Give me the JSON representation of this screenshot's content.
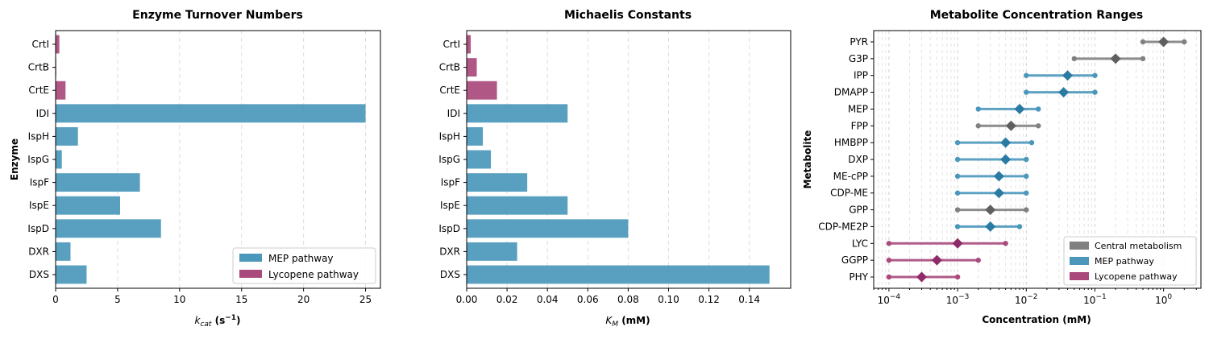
{
  "colors": {
    "mep": "#4a97bb",
    "lycopene": "#a9497c",
    "central": "#808080",
    "central_marker": "#5f5f5f",
    "mep_marker": "#2a7aa3",
    "lyc_marker": "#8e2b68"
  },
  "chart_data": [
    {
      "type": "bar",
      "orientation": "horizontal",
      "title": "Enzyme Turnover Numbers",
      "xlabel_main": "k",
      "xlabel_sub": "cat",
      "xlabel_unit": " (s",
      "xlabel_exp": "−1",
      "xlabel_close": ")",
      "ylabel": "Enzyme",
      "xlim": [
        0,
        26.2
      ],
      "xticks": [
        0,
        5,
        10,
        15,
        20,
        25
      ],
      "xtick_labels": [
        "0",
        "5",
        "10",
        "15",
        "20",
        "25"
      ],
      "grid": "x",
      "legend_position": "bottom-right",
      "categories": [
        "DXS",
        "DXR",
        "IspD",
        "IspE",
        "IspF",
        "IspG",
        "IspH",
        "IDI",
        "CrtE",
        "CrtB",
        "CrtI"
      ],
      "values": [
        2.5,
        1.2,
        8.5,
        5.2,
        6.8,
        0.5,
        1.8,
        25,
        0.8,
        0.05,
        0.3
      ],
      "groups": [
        "mep",
        "mep",
        "mep",
        "mep",
        "mep",
        "mep",
        "mep",
        "mep",
        "lycopene",
        "lycopene",
        "lycopene"
      ],
      "legend": [
        {
          "key": "mep",
          "label": "MEP pathway"
        },
        {
          "key": "lycopene",
          "label": "Lycopene pathway"
        }
      ]
    },
    {
      "type": "bar",
      "orientation": "horizontal",
      "title": "Michaelis Constants",
      "xlabel_main": "K",
      "xlabel_sub": "M",
      "xlabel_unit": " (mM)",
      "xlim": [
        0,
        0.1605
      ],
      "xticks": [
        0,
        0.02,
        0.04,
        0.06,
        0.08,
        0.1,
        0.12,
        0.14
      ],
      "xtick_labels": [
        "0.00",
        "0.02",
        "0.04",
        "0.06",
        "0.08",
        "0.10",
        "0.12",
        "0.14"
      ],
      "grid": "x",
      "categories": [
        "DXS",
        "DXR",
        "IspD",
        "IspE",
        "IspF",
        "IspG",
        "IspH",
        "IDI",
        "CrtE",
        "CrtB",
        "CrtI"
      ],
      "values": [
        0.15,
        0.025,
        0.08,
        0.05,
        0.03,
        0.012,
        0.008,
        0.05,
        0.015,
        0.005,
        0.002
      ],
      "groups": [
        "mep",
        "mep",
        "mep",
        "mep",
        "mep",
        "mep",
        "mep",
        "mep",
        "lycopene",
        "lycopene",
        "lycopene"
      ]
    },
    {
      "type": "range",
      "title": "Metabolite Concentration Ranges",
      "xlabel": "Concentration (mM)",
      "ylabel": "Metabolite",
      "xscale": "log",
      "xlim": [
        6e-05,
        3.5
      ],
      "xticks": [
        0.0001,
        0.001,
        0.01,
        0.1,
        1
      ],
      "xtick_base": "10",
      "xtick_exps": [
        "−4",
        "−3",
        "−2",
        "−1",
        "0"
      ],
      "grid": "x-major-minor",
      "legend_position": "bottom-right",
      "categories": [
        "PHY",
        "GGPP",
        "LYC",
        "CDP-ME2P",
        "GPP",
        "CDP-ME",
        "ME-cPP",
        "DXP",
        "HMBPP",
        "FPP",
        "MEP",
        "DMAPP",
        "IPP",
        "G3P",
        "PYR"
      ],
      "min": [
        0.0001,
        0.0001,
        0.0001,
        0.001,
        0.001,
        0.001,
        0.001,
        0.001,
        0.001,
        0.002,
        0.002,
        0.01,
        0.01,
        0.05,
        0.5
      ],
      "max": [
        0.001,
        0.002,
        0.005,
        0.008,
        0.01,
        0.01,
        0.01,
        0.01,
        0.012,
        0.015,
        0.015,
        0.1,
        0.1,
        0.5,
        2
      ],
      "typical": [
        0.0003,
        0.0005,
        0.001,
        0.003,
        0.003,
        0.004,
        0.004,
        0.005,
        0.005,
        0.006,
        0.008,
        0.035,
        0.04,
        0.2,
        1
      ],
      "groups": [
        "lycopene",
        "lycopene",
        "lycopene",
        "mep",
        "central",
        "mep",
        "mep",
        "mep",
        "mep",
        "central",
        "mep",
        "mep",
        "mep",
        "central",
        "central"
      ],
      "legend": [
        {
          "key": "central",
          "label": "Central metabolism"
        },
        {
          "key": "mep",
          "label": "MEP pathway"
        },
        {
          "key": "lycopene",
          "label": "Lycopene pathway"
        }
      ]
    }
  ]
}
